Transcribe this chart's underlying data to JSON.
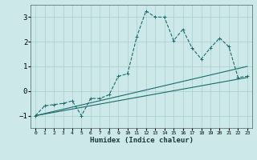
{
  "xlabel": "Humidex (Indice chaleur)",
  "bg_color": "#cce8e8",
  "grid_color": "#aacece",
  "line_color": "#1a6b6b",
  "ylim": [
    -1.5,
    3.5
  ],
  "xlim": [
    -0.5,
    23.5
  ],
  "yticks": [
    -1,
    0,
    1,
    2,
    3
  ],
  "xticks": [
    0,
    1,
    2,
    3,
    4,
    5,
    6,
    7,
    8,
    9,
    10,
    11,
    12,
    13,
    14,
    15,
    16,
    17,
    18,
    19,
    20,
    21,
    22,
    23
  ],
  "line1_x": [
    0,
    1,
    2,
    3,
    4,
    5,
    6,
    7,
    8,
    9,
    10,
    11,
    12,
    13,
    14,
    15,
    16,
    17,
    18,
    19,
    20,
    21,
    22,
    23
  ],
  "line1_y": [
    -1.0,
    -0.6,
    -0.55,
    -0.5,
    -0.4,
    -1.0,
    -0.3,
    -0.3,
    -0.15,
    0.6,
    0.7,
    2.2,
    3.25,
    3.0,
    3.0,
    2.05,
    2.5,
    1.75,
    1.3,
    1.75,
    2.15,
    1.8,
    0.55,
    0.6
  ],
  "line2_x": [
    0,
    23
  ],
  "line2_y": [
    -1.0,
    0.55
  ],
  "line3_x": [
    0,
    23
  ],
  "line3_y": [
    -1.0,
    1.0
  ]
}
